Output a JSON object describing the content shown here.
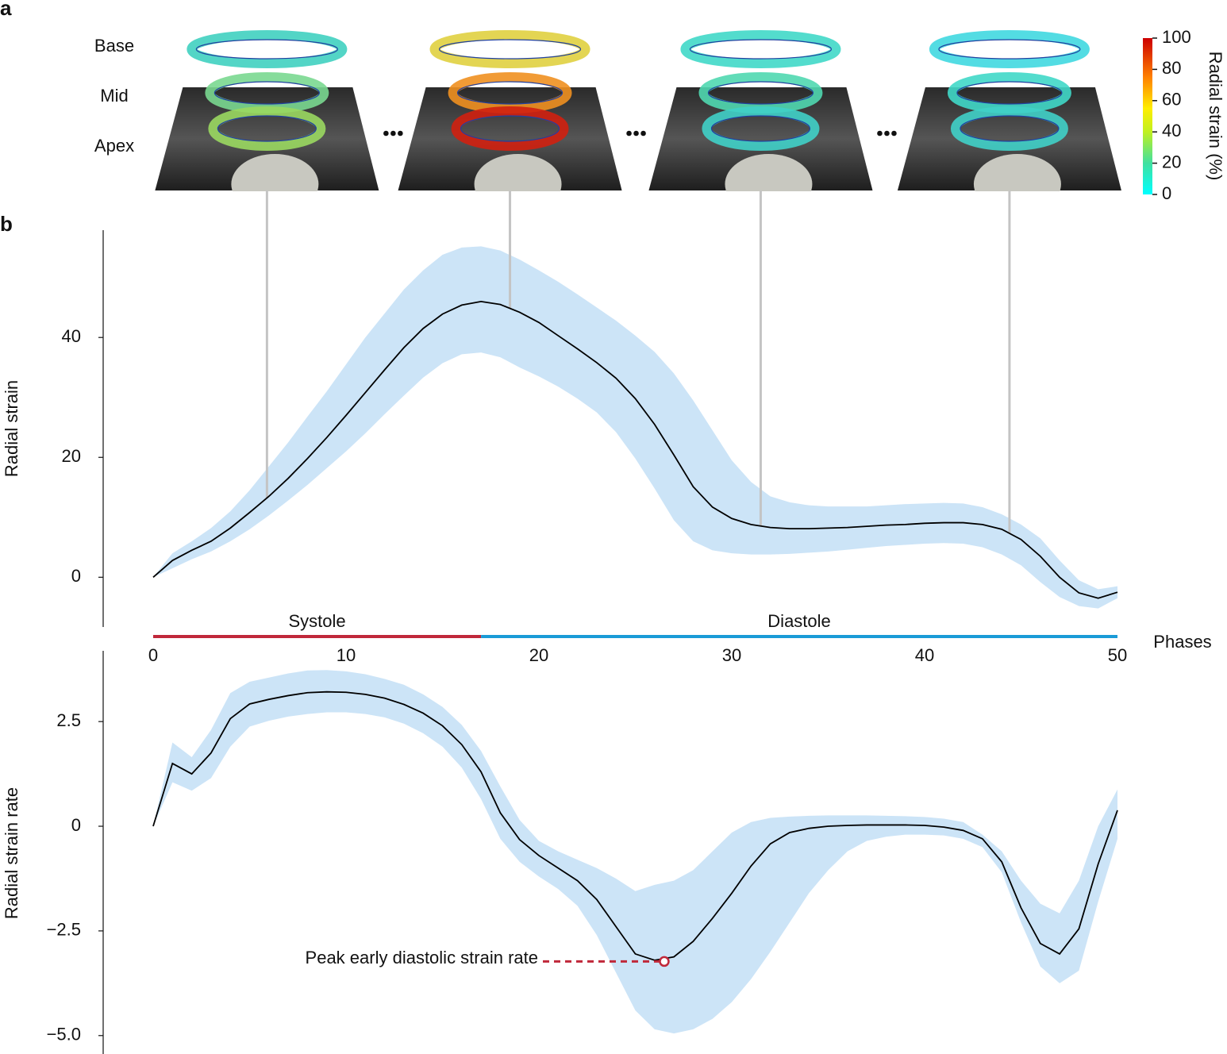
{
  "panel_labels": [
    "a",
    "b"
  ],
  "slice_labels": [
    "Base",
    "Mid",
    "Apex"
  ],
  "colorbar": {
    "label": "Radial strain (%)",
    "lim": [
      0,
      100
    ],
    "ticks": [
      0,
      20,
      40,
      60,
      80,
      100
    ]
  },
  "chart_data": [
    {
      "type": "line",
      "ylabel": "Radial strain",
      "xlabel": "Phases",
      "x": [
        0,
        1,
        2,
        3,
        4,
        5,
        6,
        7,
        8,
        9,
        10,
        11,
        12,
        13,
        14,
        15,
        16,
        17,
        18,
        19,
        20,
        21,
        22,
        23,
        24,
        25,
        26,
        27,
        28,
        29,
        30,
        31,
        32,
        33,
        34,
        35,
        36,
        37,
        38,
        39,
        40,
        41,
        42,
        43,
        44,
        45,
        46,
        47,
        48,
        49,
        50
      ],
      "values": [
        0,
        2.8,
        4.5,
        6,
        8.2,
        10.8,
        13.5,
        16.5,
        19.8,
        23.3,
        27,
        30.8,
        34.6,
        38.3,
        41.5,
        43.9,
        45.4,
        46,
        45.5,
        44.2,
        42.5,
        40.3,
        38.1,
        35.8,
        33.2,
        29.8,
        25.5,
        20.4,
        15.1,
        11.7,
        9.8,
        8.8,
        8.3,
        8.1,
        8.1,
        8.2,
        8.3,
        8.5,
        8.7,
        8.8,
        9,
        9.1,
        9.1,
        8.8,
        8,
        6.3,
        3.5,
        0,
        -2.6,
        -3.5,
        -2.5
      ],
      "upper": [
        0,
        4,
        6,
        8.2,
        11,
        14.5,
        18.5,
        22.5,
        26.8,
        31,
        35.5,
        40,
        44,
        48,
        51.2,
        53.8,
        55,
        55.2,
        54.5,
        53,
        51.2,
        49.3,
        47.2,
        45,
        42.8,
        40.3,
        37.6,
        34,
        29.5,
        24.5,
        19.5,
        15.9,
        13.5,
        12.5,
        12,
        11.8,
        11.8,
        11.8,
        12,
        12.2,
        12.3,
        12.4,
        12.3,
        11.7,
        10.5,
        8.8,
        6.5,
        2.8,
        -0.5,
        -2,
        -1.5
      ],
      "lower": [
        0,
        1.5,
        3,
        4.3,
        6,
        8,
        10.3,
        12.8,
        15.4,
        18.2,
        21,
        24,
        27.2,
        30.3,
        33.3,
        35.7,
        37.2,
        37.5,
        36.7,
        35,
        33.5,
        31.8,
        29.8,
        27.5,
        24.2,
        19.8,
        14.8,
        9.5,
        6,
        4.5,
        4,
        3.8,
        3.8,
        3.9,
        4.1,
        4.3,
        4.6,
        4.9,
        5.2,
        5.4,
        5.6,
        5.7,
        5.6,
        5,
        3.8,
        2,
        -0.8,
        -3.3,
        -4.8,
        -5.2,
        -3.5
      ],
      "color": "#000000",
      "band_color": "#cce4f7",
      "xlim": [
        0,
        50
      ],
      "xticks": [
        0,
        10,
        20,
        30,
        40,
        50
      ],
      "ylim": [
        -8.3,
        57.9
      ],
      "yticks": [
        0,
        20,
        40
      ],
      "frame_markers": [
        5.9,
        18.5,
        31.5,
        44.4
      ],
      "phases": [
        {
          "name": "Systole",
          "start": 0,
          "end": 17,
          "color": "#c0283a"
        },
        {
          "name": "Diastole",
          "start": 17,
          "end": 50,
          "color": "#1a9bd7"
        }
      ]
    },
    {
      "type": "line",
      "ylabel": "Radial strain rate",
      "x": [
        0,
        1,
        2,
        3,
        4,
        5,
        6,
        7,
        8,
        9,
        10,
        11,
        12,
        13,
        14,
        15,
        16,
        17,
        18,
        19,
        20,
        21,
        22,
        23,
        24,
        25,
        26,
        27,
        28,
        29,
        30,
        31,
        32,
        33,
        34,
        35,
        36,
        37,
        38,
        39,
        40,
        41,
        42,
        43,
        44,
        45,
        46,
        47,
        48,
        49,
        50
      ],
      "values": [
        0,
        1.5,
        1.25,
        1.75,
        2.57,
        2.92,
        3.03,
        3.12,
        3.19,
        3.21,
        3.2,
        3.15,
        3.06,
        2.91,
        2.7,
        2.4,
        1.95,
        1.3,
        0.32,
        -0.32,
        -0.7,
        -1,
        -1.3,
        -1.75,
        -2.4,
        -3.05,
        -3.2,
        -3.12,
        -2.75,
        -2.2,
        -1.6,
        -0.95,
        -0.42,
        -0.15,
        -0.05,
        0,
        0.02,
        0.03,
        0.03,
        0.03,
        0.02,
        -0.02,
        -0.1,
        -0.3,
        -0.85,
        -1.95,
        -2.8,
        -3.05,
        -2.45,
        -0.9,
        0.38
      ],
      "upper": [
        0,
        2,
        1.65,
        2.3,
        3.18,
        3.45,
        3.55,
        3.65,
        3.72,
        3.73,
        3.7,
        3.63,
        3.52,
        3.38,
        3.15,
        2.85,
        2.42,
        1.8,
        0.95,
        0.15,
        -0.35,
        -0.6,
        -0.8,
        -1,
        -1.25,
        -1.55,
        -1.4,
        -1.3,
        -1.05,
        -0.6,
        -0.15,
        0.1,
        0.2,
        0.23,
        0.25,
        0.26,
        0.26,
        0.26,
        0.25,
        0.24,
        0.22,
        0.18,
        0.1,
        -0.2,
        -0.6,
        -1.3,
        -1.85,
        -2.08,
        -1.3,
        0,
        0.88
      ],
      "lower": [
        0,
        1.05,
        0.85,
        1.15,
        1.9,
        2.38,
        2.52,
        2.62,
        2.68,
        2.72,
        2.72,
        2.68,
        2.6,
        2.45,
        2.22,
        1.9,
        1.4,
        0.65,
        -0.3,
        -0.85,
        -1.2,
        -1.5,
        -1.9,
        -2.6,
        -3.5,
        -4.4,
        -4.85,
        -4.95,
        -4.85,
        -4.6,
        -4.2,
        -3.65,
        -3,
        -2.3,
        -1.6,
        -1.05,
        -0.6,
        -0.35,
        -0.25,
        -0.2,
        -0.2,
        -0.22,
        -0.3,
        -0.5,
        -1.1,
        -2.3,
        -3.35,
        -3.75,
        -3.45,
        -1.8,
        -0.3
      ],
      "color": "#000000",
      "band_color": "#cce4f7",
      "xlim": [
        0,
        50
      ],
      "ylim": [
        -5.44,
        4.19
      ],
      "yticks": [
        {
          "value": -5,
          "label": "−5.0"
        },
        {
          "value": -2.5,
          "label": "−2.5"
        },
        0,
        2.5
      ],
      "annotation": {
        "text": "Peak early diastolic strain rate",
        "x": 26.5,
        "y": -3.23,
        "color": "#c0283a"
      }
    }
  ]
}
